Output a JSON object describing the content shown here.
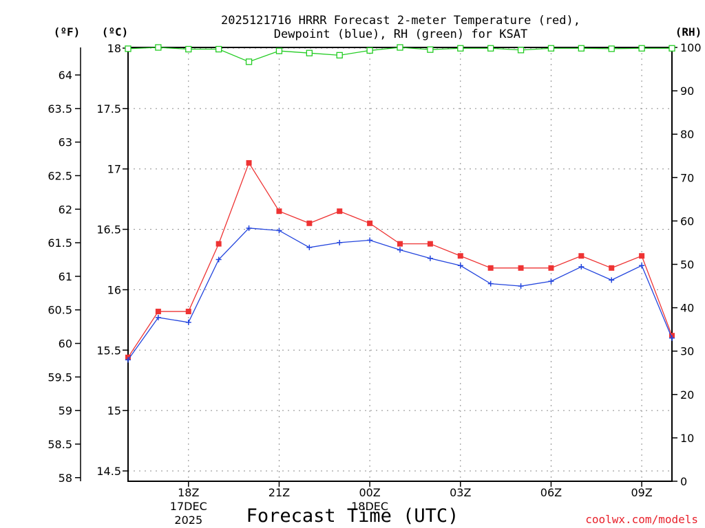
{
  "chart_data": {
    "type": "line",
    "title_line1": "2025121716 HRRR Forecast 2-meter Temperature (red),",
    "title_line2": "Dewpoint (blue), RH (green) for KSAT",
    "unit_f": "(ºF)",
    "unit_c": "(ºC)",
    "unit_rh": "(RH)",
    "xlabel": "Forecast Time (UTC)",
    "credit": "coolwx.com/models",
    "x_range": [
      16,
      34
    ],
    "c_range": [
      14.5,
      18
    ],
    "f_range": [
      58,
      64.4
    ],
    "rh_range": [
      0,
      100
    ],
    "c_ticks": [
      "14.5",
      "15",
      "15.5",
      "16",
      "16.5",
      "17",
      "17.5",
      "18"
    ],
    "f_ticks": [
      "58",
      "58.5",
      "59",
      "59.5",
      "60",
      "60.5",
      "61",
      "61.5",
      "62",
      "62.5",
      "63",
      "63.5",
      "64"
    ],
    "rh_ticks": [
      "0",
      "10",
      "20",
      "30",
      "40",
      "50",
      "60",
      "70",
      "80",
      "90",
      "100"
    ],
    "x_ticks": [
      {
        "hour": 18,
        "label": "18Z",
        "sub1": "17DEC",
        "sub2": "2025"
      },
      {
        "hour": 21,
        "label": "21Z",
        "sub1": "",
        "sub2": ""
      },
      {
        "hour": 24,
        "label": "00Z",
        "sub1": "18DEC",
        "sub2": ""
      },
      {
        "hour": 27,
        "label": "03Z",
        "sub1": "",
        "sub2": ""
      },
      {
        "hour": 30,
        "label": "06Z",
        "sub1": "",
        "sub2": ""
      },
      {
        "hour": 33,
        "label": "09Z",
        "sub1": "",
        "sub2": ""
      }
    ],
    "hours": [
      16,
      17,
      18,
      19,
      20,
      21,
      22,
      23,
      24,
      25,
      26,
      27,
      28,
      29,
      30,
      31,
      32,
      33,
      34
    ],
    "series": [
      {
        "name": "Temperature",
        "color": "#ee3333",
        "axis": "C",
        "marker": "filled-square",
        "values": [
          15.44,
          15.82,
          15.82,
          16.38,
          17.05,
          16.65,
          16.55,
          16.65,
          16.55,
          16.38,
          16.38,
          16.28,
          16.18,
          16.18,
          16.18,
          16.28,
          16.18,
          16.28,
          15.62
        ]
      },
      {
        "name": "Dewpoint",
        "color": "#2244dd",
        "axis": "C",
        "marker": "plus",
        "values": [
          15.42,
          15.77,
          15.73,
          16.25,
          16.51,
          16.49,
          16.35,
          16.39,
          16.41,
          16.33,
          16.26,
          16.2,
          16.05,
          16.03,
          16.07,
          16.19,
          16.08,
          16.2,
          15.6
        ]
      },
      {
        "name": "RH",
        "color": "#22cc22",
        "axis": "RH",
        "marker": "open-square",
        "values": [
          99.7,
          100,
          99.6,
          99.6,
          96.7,
          99.2,
          98.7,
          98.2,
          99.3,
          100,
          99.5,
          99.8,
          99.8,
          99.4,
          99.8,
          99.8,
          99.7,
          99.8,
          99.8
        ]
      }
    ]
  }
}
